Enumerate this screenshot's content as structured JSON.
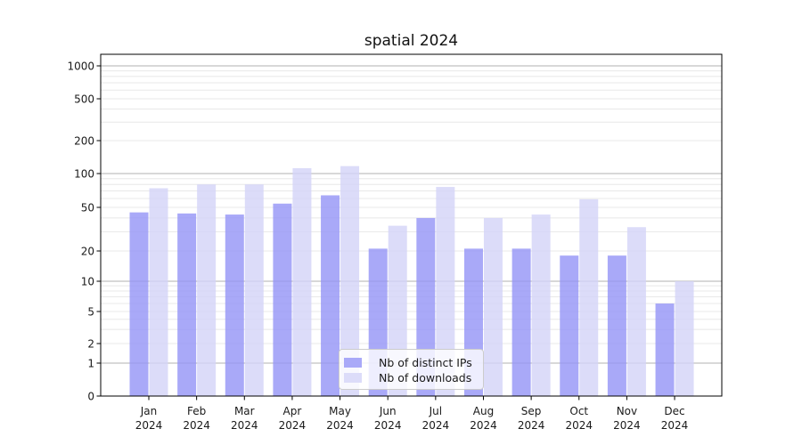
{
  "chart_data": {
    "type": "bar",
    "title": "spatial 2024",
    "categories": [
      "Jan 2024",
      "Feb 2024",
      "Mar 2024",
      "Apr 2024",
      "May 2024",
      "Jun 2024",
      "Jul 2024",
      "Aug 2024",
      "Sep 2024",
      "Oct 2024",
      "Nov 2024",
      "Dec 2024"
    ],
    "series": [
      {
        "key": "distinct-ips",
        "name": "Nb of distinct IPs",
        "color": "#a9a9f8",
        "values": [
          45,
          44,
          43,
          54,
          64,
          21,
          40,
          21,
          21,
          18,
          18,
          6
        ]
      },
      {
        "key": "downloads",
        "name": "Nb of downloads",
        "color": "#dcdcf9",
        "values": [
          74,
          80,
          80,
          112,
          117,
          34,
          76,
          40,
          43,
          59,
          33,
          10
        ]
      }
    ],
    "xlabel": "",
    "ylabel": "",
    "yscale": "symlog",
    "yticks": [
      0,
      1,
      2,
      5,
      10,
      20,
      50,
      100,
      200,
      500,
      1000
    ],
    "ylim": [
      0,
      1280
    ],
    "grid": "both",
    "legend_position": "lower center"
  },
  "colors": {
    "background": "#ffffff",
    "major_grid": "#b2b2b2",
    "minor_grid": "#e8e8e8",
    "axis": "#000000",
    "text": "#1a1a1a",
    "legend_border": "#cccccc",
    "legend_background": "rgba(255,255,255,0.8)"
  }
}
